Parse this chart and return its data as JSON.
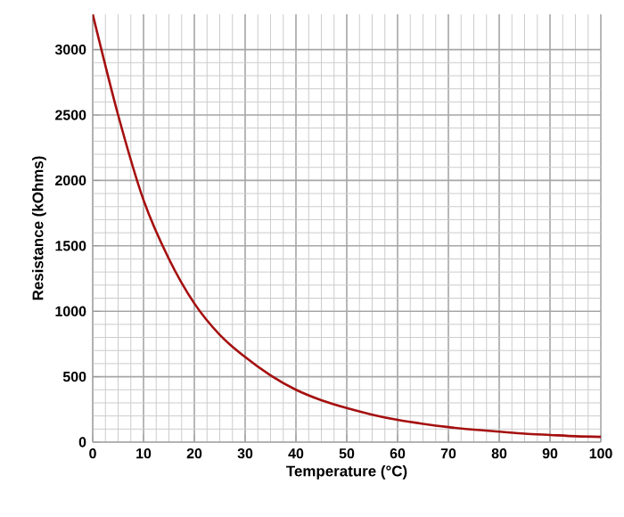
{
  "chart_data": {
    "type": "line",
    "xlabel": "Temperature (°C)",
    "ylabel": "Resistance (kOhms)",
    "x": [
      0,
      5,
      10,
      15,
      20,
      25,
      30,
      35,
      40,
      45,
      50,
      55,
      60,
      65,
      70,
      75,
      80,
      85,
      90,
      95,
      100
    ],
    "series": [
      {
        "color": "#a50f0f",
        "values": [
          3270,
          2500,
          1850,
          1400,
          1060,
          820,
          650,
          510,
          400,
          320,
          260,
          210,
          170,
          140,
          115,
          95,
          80,
          65,
          55,
          45,
          40
        ]
      }
    ],
    "xlim": [
      0,
      100
    ],
    "ylim": [
      0,
      3270
    ],
    "xticks": [
      0,
      10,
      20,
      30,
      40,
      50,
      60,
      70,
      80,
      90,
      100
    ],
    "yticks": [
      0,
      500,
      1000,
      1500,
      2000,
      2500,
      3000
    ],
    "grid": true,
    "marker": "none",
    "line_style": "solid"
  }
}
